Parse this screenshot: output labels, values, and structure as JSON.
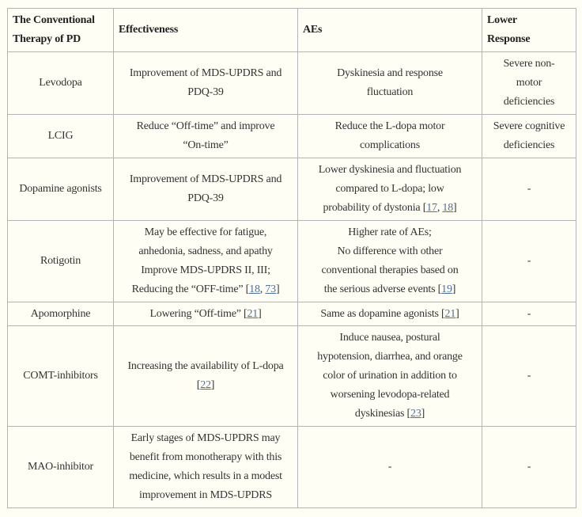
{
  "table": {
    "headers": [
      "The Conventional\nTherapy of PD",
      "Effectiveness",
      "AEs",
      "Lower\nResponse"
    ],
    "rows": [
      [
        [
          "Levodopa"
        ],
        [
          "Improvement of MDS-UPDRS and\nPDQ-39"
        ],
        [
          "Dyskinesia and response\nfluctuation"
        ],
        [
          "Severe non-\nmotor\ndeficiencies"
        ]
      ],
      [
        [
          "LCIG"
        ],
        [
          "Reduce “Off-time” and improve\n“On-time”"
        ],
        [
          "Reduce the L-dopa motor\ncomplications"
        ],
        [
          "Severe cognitive\ndeficiencies"
        ]
      ],
      [
        [
          "Dopamine agonists"
        ],
        [
          "Improvement of MDS-UPDRS and\nPDQ-39"
        ],
        [
          "Lower dyskinesia and fluctuation\ncompared to L-dopa; low\nprobability of dystonia [",
          {
            "ref": "17"
          },
          ", ",
          {
            "ref": "18"
          },
          "]"
        ],
        [
          "-"
        ]
      ],
      [
        [
          "Rotigotin"
        ],
        [
          "May be effective for fatigue,\nanhedonia, sadness, and apathy\nImprove MDS-UPDRS II, III;\nReducing the “OFF-time” [",
          {
            "ref": "18"
          },
          ", ",
          {
            "ref": "73"
          },
          "]"
        ],
        [
          "Higher rate of AEs;\nNo difference with other\nconventional therapies based on\nthe serious adverse events [",
          {
            "ref": "19"
          },
          "]"
        ],
        [
          "-"
        ]
      ],
      [
        [
          "Apomorphine"
        ],
        [
          "Lowering “Off-time” [",
          {
            "ref": "21"
          },
          "]"
        ],
        [
          "Same as dopamine agonists [",
          {
            "ref": "21"
          },
          "]"
        ],
        [
          "-"
        ]
      ],
      [
        [
          "COMT-inhibitors"
        ],
        [
          "Increasing the availability of L-dopa\n[",
          {
            "ref": "22"
          },
          "]"
        ],
        [
          "Induce nausea, postural\nhypotension, diarrhea, and orange\ncolor of urination in addition to\nworsening levodopa-related\ndyskinesias [",
          {
            "ref": "23"
          },
          "]"
        ],
        [
          "-"
        ]
      ],
      [
        [
          "MAO-inhibitor"
        ],
        [
          "Early stages of MDS-UPDRS may\nbenefit from monotherapy with this\nmedicine, which results in a modest\nimprovement in MDS-UPDRS"
        ],
        [
          "-"
        ],
        [
          "-"
        ]
      ]
    ]
  },
  "colors": {
    "background": "#fffef5",
    "link": "#4a6fa5",
    "border": "#b4b4b4"
  }
}
